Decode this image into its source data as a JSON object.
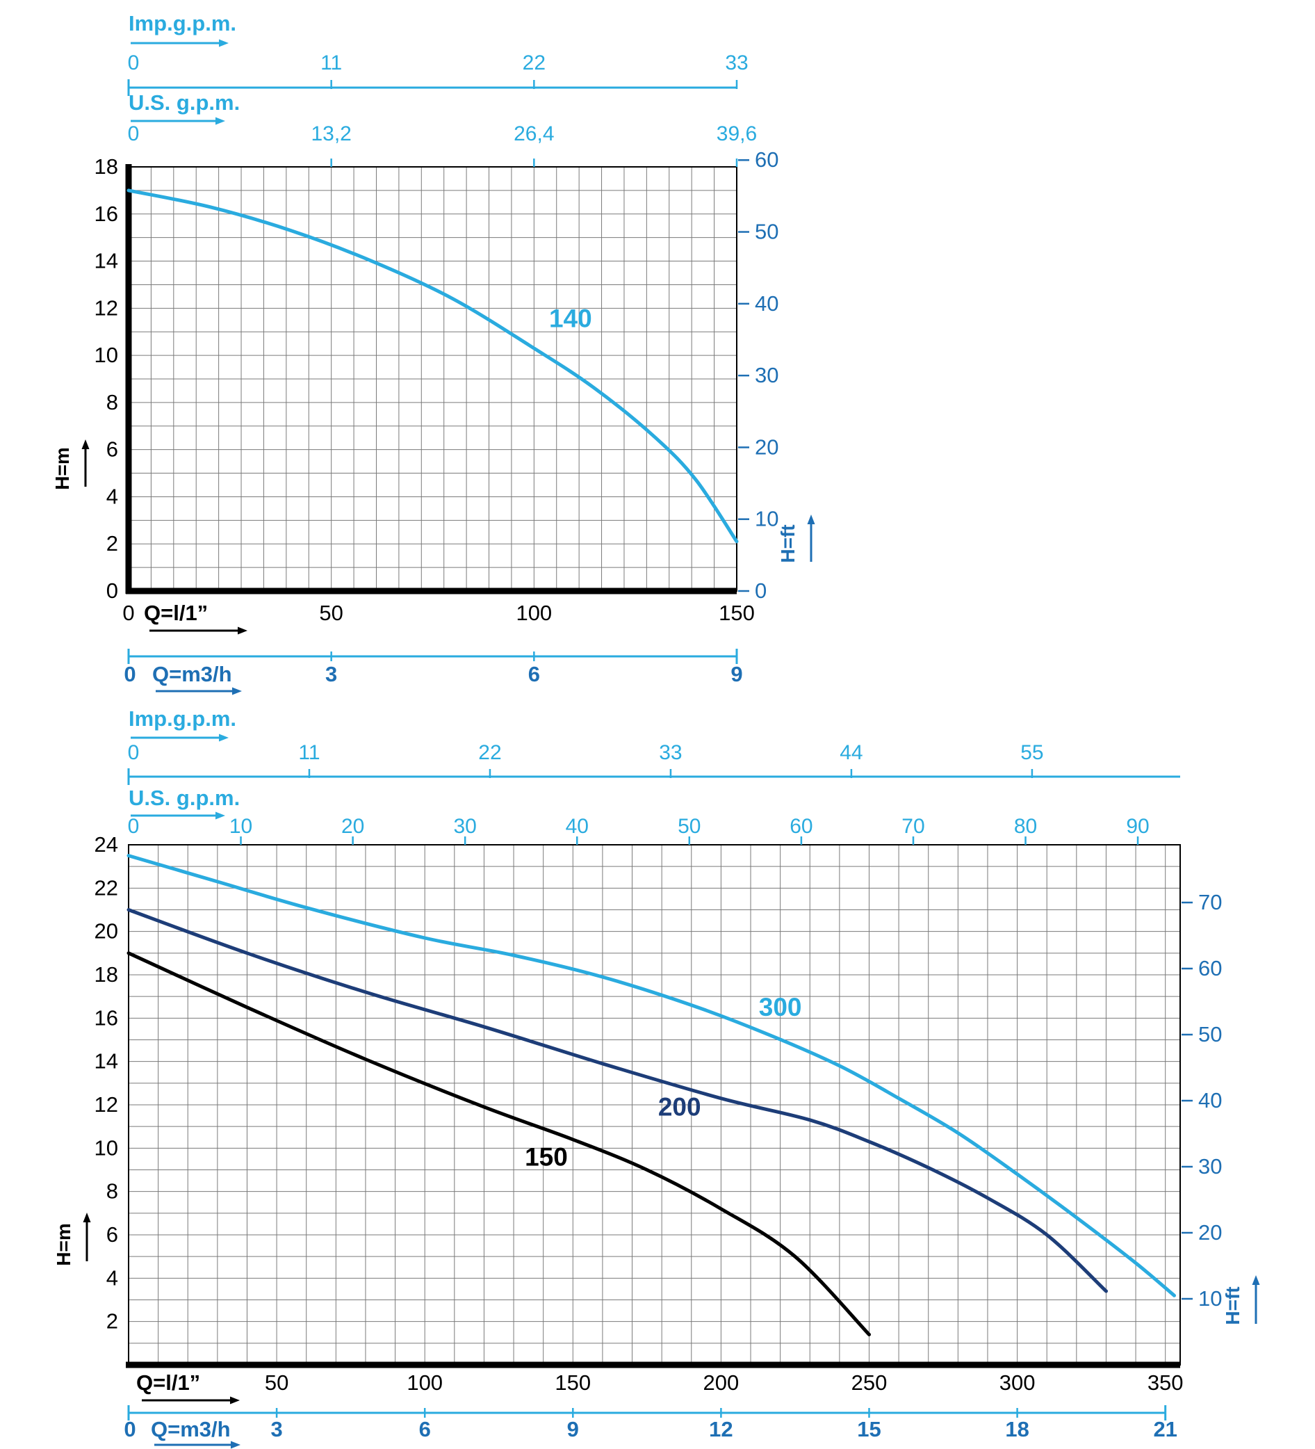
{
  "page": {
    "background": "#ffffff"
  },
  "colors": {
    "cyan": "#2aabdf",
    "blue": "#1e6fb4",
    "navy": "#1d3d78",
    "black": "#000000",
    "grid": "#7a7a7a"
  },
  "chart_data": [
    {
      "type": "line",
      "title": "",
      "x_axis_units": [
        "Imp.g.p.m.",
        "U.S. g.p.m.",
        "Q=l/1”",
        "Q=m3/h"
      ],
      "y_axis_units": [
        "H=m",
        "H=ft"
      ],
      "x_range_l_min": [
        0,
        150
      ],
      "y_range_m": [
        0,
        18
      ],
      "grid": true,
      "legend_position": "none",
      "imp_axis": {
        "title": "Imp.g.p.m.",
        "ticks": [
          {
            "q": 0,
            "label": "0"
          },
          {
            "q": 50,
            "label": "11"
          },
          {
            "q": 100,
            "label": "22"
          },
          {
            "q": 150,
            "label": "33"
          }
        ]
      },
      "us_axis": {
        "title": "U.S. g.p.m.",
        "ticks": [
          {
            "q": 0,
            "label": "0"
          },
          {
            "q": 50,
            "label": "13,2"
          },
          {
            "q": 100,
            "label": "26,4"
          },
          {
            "q": 150,
            "label": "39,6"
          }
        ]
      },
      "y_left": {
        "title": "H=m",
        "ticks": [
          {
            "v": 0,
            "label": "0"
          },
          {
            "v": 2,
            "label": "2"
          },
          {
            "v": 4,
            "label": "4"
          },
          {
            "v": 6,
            "label": "6"
          },
          {
            "v": 8,
            "label": "8"
          },
          {
            "v": 10,
            "label": "10"
          },
          {
            "v": 12,
            "label": "12"
          },
          {
            "v": 14,
            "label": "14"
          },
          {
            "v": 16,
            "label": "16"
          },
          {
            "v": 18,
            "label": "18"
          }
        ]
      },
      "y_right": {
        "title": "H=ft",
        "m_per_ft": 0.3048,
        "ticks": [
          {
            "v": 0,
            "label": "0"
          },
          {
            "v": 10,
            "label": "10"
          },
          {
            "v": 20,
            "label": "20"
          },
          {
            "v": 30,
            "label": "30"
          },
          {
            "v": 40,
            "label": "40"
          },
          {
            "v": 50,
            "label": "50"
          },
          {
            "v": 60,
            "label": "60"
          }
        ]
      },
      "x_lmin": {
        "title": "Q=l/1”",
        "ticks": [
          {
            "q": 0,
            "label": "0"
          },
          {
            "q": 50,
            "label": "50"
          },
          {
            "q": 100,
            "label": "100"
          },
          {
            "q": 150,
            "label": "150"
          }
        ]
      },
      "x_m3h": {
        "title": "Q=m3/h",
        "ticks": [
          {
            "q": 0,
            "label": "0"
          },
          {
            "q": 50,
            "label": "3"
          },
          {
            "q": 100,
            "label": "6"
          },
          {
            "q": 150,
            "label": "9"
          }
        ]
      },
      "series": [
        {
          "name": "140",
          "label": "140",
          "color_key": "cyan",
          "label_q": 109,
          "label_h": 11.2,
          "points_q_h": [
            [
              0,
              17.0
            ],
            [
              20,
              16.3
            ],
            [
              40,
              15.3
            ],
            [
              60,
              14.0
            ],
            [
              80,
              12.4
            ],
            [
              100,
              10.3
            ],
            [
              115,
              8.6
            ],
            [
              130,
              6.5
            ],
            [
              140,
              4.7
            ],
            [
              150,
              2.1
            ]
          ]
        }
      ]
    },
    {
      "type": "line",
      "title": "",
      "x_axis_units": [
        "Imp.g.p.m.",
        "U.S. g.p.m.",
        "Q=l/1”",
        "Q=m3/h"
      ],
      "y_axis_units": [
        "H=m",
        "H=ft"
      ],
      "x_range_l_min": [
        0,
        355
      ],
      "y_range_m": [
        0,
        24
      ],
      "grid": true,
      "legend_position": "none",
      "imp_axis": {
        "title": "Imp.g.p.m.",
        "ticks": [
          {
            "q": 0,
            "label": "0"
          },
          {
            "q": 61,
            "label": "11"
          },
          {
            "q": 122,
            "label": "22"
          },
          {
            "q": 183,
            "label": "33"
          },
          {
            "q": 244,
            "label": "44"
          },
          {
            "q": 305,
            "label": "55"
          }
        ]
      },
      "us_axis": {
        "title": "U.S. g.p.m.",
        "ticks": [
          {
            "q": 0,
            "label": "0"
          },
          {
            "q": 37.9,
            "label": "10"
          },
          {
            "q": 75.7,
            "label": "20"
          },
          {
            "q": 113.6,
            "label": "30"
          },
          {
            "q": 151.4,
            "label": "40"
          },
          {
            "q": 189.3,
            "label": "50"
          },
          {
            "q": 227.1,
            "label": "60"
          },
          {
            "q": 264.9,
            "label": "70"
          },
          {
            "q": 302.8,
            "label": "80"
          },
          {
            "q": 340.7,
            "label": "90"
          }
        ]
      },
      "y_left": {
        "title": "H=m",
        "ticks": [
          {
            "v": 2,
            "label": "2"
          },
          {
            "v": 4,
            "label": "4"
          },
          {
            "v": 6,
            "label": "6"
          },
          {
            "v": 8,
            "label": "8"
          },
          {
            "v": 10,
            "label": "10"
          },
          {
            "v": 12,
            "label": "12"
          },
          {
            "v": 14,
            "label": "14"
          },
          {
            "v": 16,
            "label": "16"
          },
          {
            "v": 18,
            "label": "18"
          },
          {
            "v": 20,
            "label": "20"
          },
          {
            "v": 22,
            "label": "22"
          },
          {
            "v": 24,
            "label": "24"
          }
        ]
      },
      "y_right": {
        "title": "H=ft",
        "m_per_ft": 0.3048,
        "ticks": [
          {
            "v": 10,
            "label": "10"
          },
          {
            "v": 20,
            "label": "20"
          },
          {
            "v": 30,
            "label": "30"
          },
          {
            "v": 40,
            "label": "40"
          },
          {
            "v": 50,
            "label": "50"
          },
          {
            "v": 60,
            "label": "60"
          },
          {
            "v": 70,
            "label": "70"
          }
        ]
      },
      "x_lmin": {
        "title": "Q=l/1”",
        "ticks": [
          {
            "q": 50,
            "label": "50"
          },
          {
            "q": 100,
            "label": "100"
          },
          {
            "q": 150,
            "label": "150"
          },
          {
            "q": 200,
            "label": "200"
          },
          {
            "q": 250,
            "label": "250"
          },
          {
            "q": 300,
            "label": "300"
          },
          {
            "q": 350,
            "label": "350"
          }
        ]
      },
      "x_m3h": {
        "title": "Q=m3/h",
        "ticks": [
          {
            "q": 0,
            "label": "0"
          },
          {
            "q": 50,
            "label": "3"
          },
          {
            "q": 100,
            "label": "6"
          },
          {
            "q": 150,
            "label": "9"
          },
          {
            "q": 200,
            "label": "12"
          },
          {
            "q": 250,
            "label": "15"
          },
          {
            "q": 300,
            "label": "18"
          },
          {
            "q": 350,
            "label": "21"
          }
        ]
      },
      "series": [
        {
          "name": "300",
          "label": "300",
          "color_key": "cyan",
          "label_q": 220,
          "label_h": 16.1,
          "points_q_h": [
            [
              0,
              23.5
            ],
            [
              30,
              22.3
            ],
            [
              60,
              21.1
            ],
            [
              100,
              19.7
            ],
            [
              130,
              18.9
            ],
            [
              160,
              17.9
            ],
            [
              190,
              16.6
            ],
            [
              215,
              15.3
            ],
            [
              240,
              13.8
            ],
            [
              260,
              12.3
            ],
            [
              280,
              10.7
            ],
            [
              300,
              8.8
            ],
            [
              320,
              6.8
            ],
            [
              340,
              4.7
            ],
            [
              353,
              3.2
            ]
          ]
        },
        {
          "name": "200",
          "label": "200",
          "color_key": "navy",
          "label_q": 186,
          "label_h": 11.5,
          "points_q_h": [
            [
              0,
              21.0
            ],
            [
              40,
              19.0
            ],
            [
              80,
              17.2
            ],
            [
              120,
              15.6
            ],
            [
              160,
              13.9
            ],
            [
              200,
              12.3
            ],
            [
              230,
              11.3
            ],
            [
              250,
              10.3
            ],
            [
              270,
              9.1
            ],
            [
              290,
              7.7
            ],
            [
              310,
              6.0
            ],
            [
              330,
              3.4
            ]
          ]
        },
        {
          "name": "150",
          "label": "150",
          "color_key": "black",
          "label_q": 141,
          "label_h": 9.2,
          "points_q_h": [
            [
              0,
              19.0
            ],
            [
              40,
              16.5
            ],
            [
              80,
              14.1
            ],
            [
              120,
              11.9
            ],
            [
              150,
              10.4
            ],
            [
              175,
              9.0
            ],
            [
              200,
              7.2
            ],
            [
              225,
              5.0
            ],
            [
              250,
              1.4
            ]
          ]
        }
      ]
    }
  ]
}
